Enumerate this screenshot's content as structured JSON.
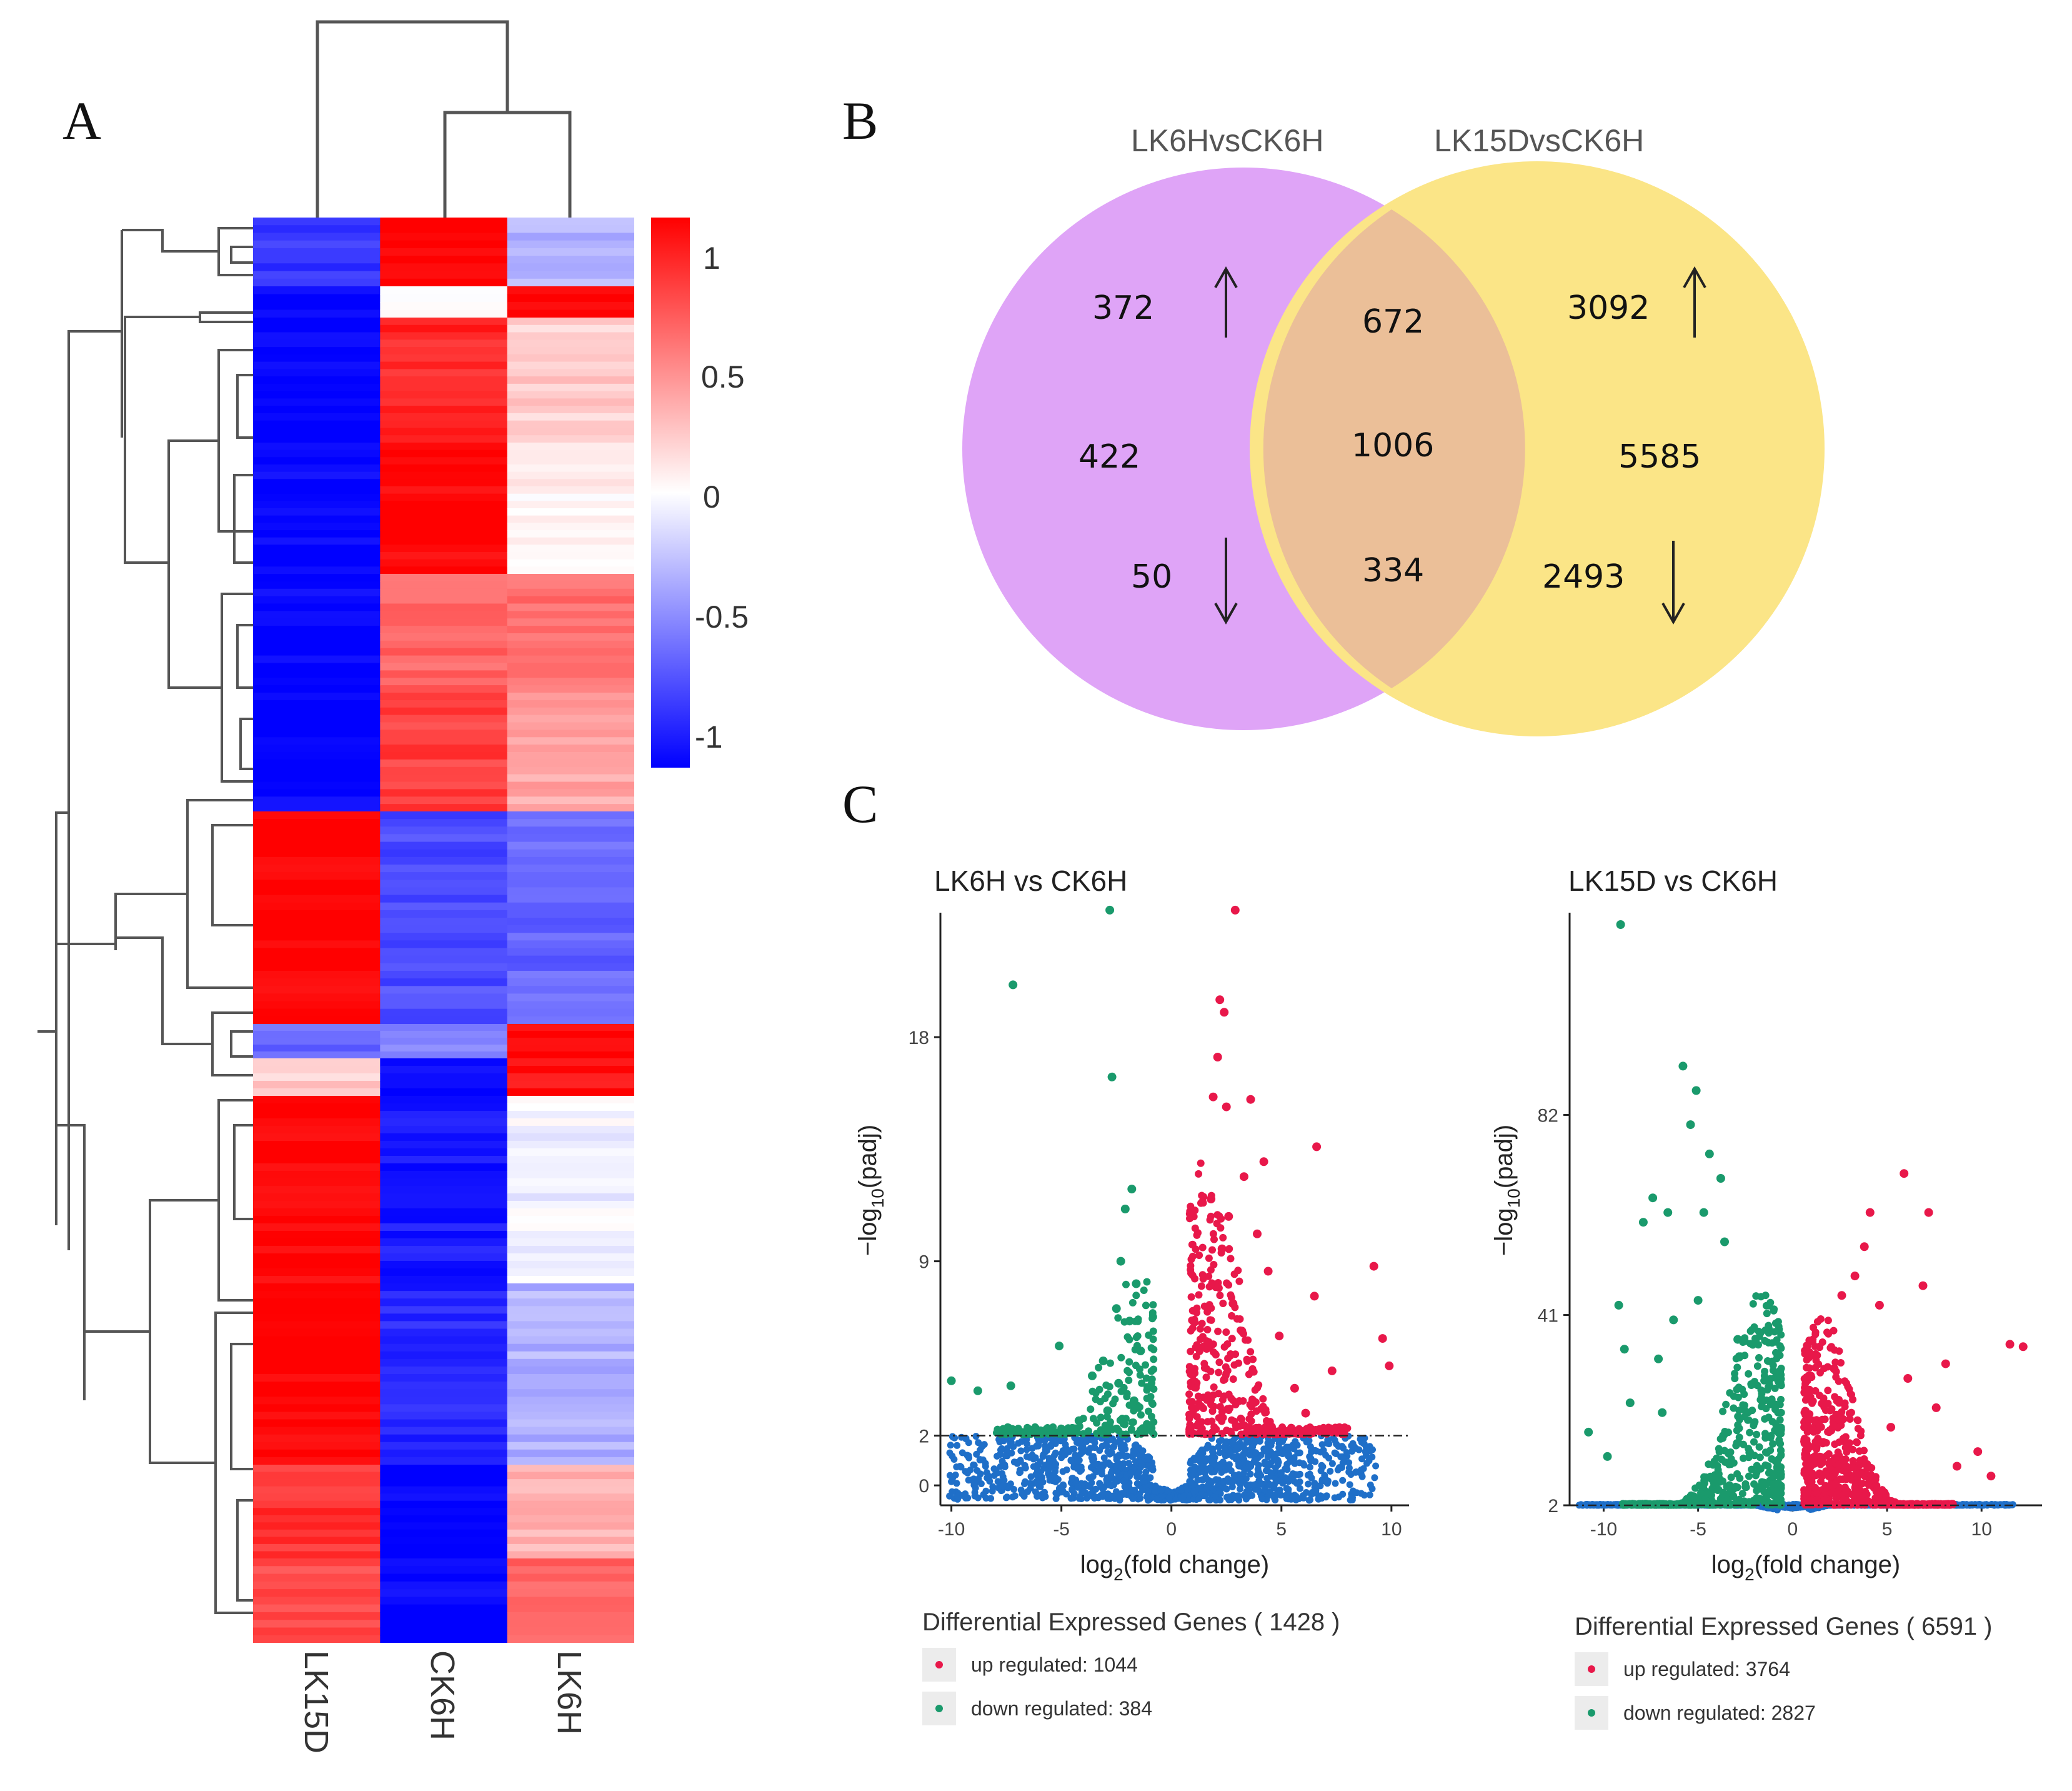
{
  "panels": {
    "a": "A",
    "b": "B",
    "c": "C"
  },
  "colors": {
    "red": "#ff0000",
    "blue": "#0000ff",
    "white": "#ffffff",
    "up": "#e8184a",
    "down": "#1a9a6c",
    "ns": "#1f6fc8",
    "venn_left": "#dfa4f7",
    "venn_right": "#fbe587",
    "venn_overlap": "#ebbf98"
  },
  "chart_data": [
    {
      "type": "heatmap",
      "columns": [
        "LK15D",
        "CK6H",
        "LK6H"
      ],
      "colorbar": {
        "ticks": [
          "1",
          "0.5",
          "0",
          "-0.5",
          "-1"
        ],
        "range": [
          -1,
          1
        ]
      },
      "blocks": [
        {
          "LK15D": -0.8,
          "CK6H": 1.0,
          "LK6H": -0.3
        },
        {
          "LK15D": -1.0,
          "CK6H": 0.05,
          "LK6H": 0.95
        },
        {
          "LK15D": -1.0,
          "CK6H": 0.85,
          "LK6H": 0.2
        },
        {
          "LK15D": -1.0,
          "CK6H": 1.0,
          "LK6H": 0.05
        },
        {
          "LK15D": -1.0,
          "CK6H": 0.6,
          "LK6H": 0.55
        },
        {
          "LK15D": -1.0,
          "CK6H": 0.75,
          "LK6H": 0.35
        },
        {
          "LK15D": 1.0,
          "CK6H": -0.7,
          "LK6H": -0.6
        },
        {
          "LK15D": -0.6,
          "CK6H": -0.5,
          "LK6H": 1.0
        },
        {
          "LK15D": 0.2,
          "CK6H": -1.0,
          "LK6H": 0.95
        },
        {
          "LK15D": 1.0,
          "CK6H": -0.9,
          "LK6H": -0.05
        },
        {
          "LK15D": 1.0,
          "CK6H": -0.85,
          "LK6H": -0.3
        },
        {
          "LK15D": 0.8,
          "CK6H": -1.0,
          "LK6H": 0.3
        },
        {
          "LK15D": 0.7,
          "CK6H": -1.0,
          "LK6H": 0.6
        }
      ]
    },
    {
      "type": "venn",
      "sets": [
        "LK6HvsCK6H",
        "LK15DvsCK6H"
      ],
      "counts": {
        "left_up": "372",
        "left_total": "422",
        "left_down": "50",
        "overlap_up": "672",
        "overlap_total": "1006",
        "overlap_down": "334",
        "right_up": "3092",
        "right_total": "5585",
        "right_down": "2493"
      },
      "arrows": {
        "up": "↑",
        "down": "↓"
      }
    },
    {
      "type": "scatter",
      "title": "LK6H vs CK6H",
      "xlabel_base": "log",
      "xlabel_sub": "2",
      "xlabel_rest": "(fold change)",
      "ylabel_pre": "−log",
      "ylabel_sub": "10",
      "ylabel_rest": "(padj)",
      "xlim": [
        -10.5,
        10.8
      ],
      "ylim": [
        -0.8,
        23.5
      ],
      "xticks": [
        "-10",
        "-5",
        "0",
        "5",
        "10"
      ],
      "yticks": [
        "0",
        "2",
        "9",
        "18"
      ],
      "threshold": 2,
      "points_up": [
        [
          2.9,
          23.1
        ],
        [
          2.2,
          19.5
        ],
        [
          2.4,
          19.0
        ],
        [
          2.1,
          17.2
        ],
        [
          1.9,
          15.6
        ],
        [
          2.5,
          15.2
        ],
        [
          3.6,
          15.5
        ],
        [
          6.6,
          13.6
        ],
        [
          4.2,
          13.0
        ],
        [
          3.3,
          12.4
        ],
        [
          1.8,
          11.5
        ],
        [
          2.6,
          10.8
        ],
        [
          3.9,
          10.1
        ],
        [
          2.3,
          9.5
        ],
        [
          9.2,
          8.8
        ],
        [
          4.4,
          8.6
        ],
        [
          6.5,
          7.6
        ],
        [
          2.8,
          7.3
        ],
        [
          9.6,
          5.9
        ],
        [
          3.2,
          6.2
        ],
        [
          4.9,
          6.0
        ],
        [
          1.6,
          5.5
        ],
        [
          7.3,
          4.6
        ],
        [
          9.9,
          4.8
        ],
        [
          5.6,
          3.9
        ],
        [
          3.7,
          3.4
        ],
        [
          6.1,
          2.9
        ]
      ],
      "points_down": [
        [
          -2.8,
          23.1
        ],
        [
          -7.2,
          20.1
        ],
        [
          -2.7,
          16.4
        ],
        [
          -1.8,
          11.9
        ],
        [
          -2.1,
          11.1
        ],
        [
          -2.3,
          9.0
        ],
        [
          -1.6,
          8.1
        ],
        [
          -2.5,
          7.1
        ],
        [
          -1.9,
          6.6
        ],
        [
          -5.1,
          5.6
        ],
        [
          -3.1,
          5.0
        ],
        [
          -1.4,
          5.4
        ],
        [
          -10.0,
          4.2
        ],
        [
          -2.4,
          4.1
        ],
        [
          -3.6,
          4.4
        ],
        [
          -8.8,
          3.8
        ],
        [
          -1.7,
          3.4
        ],
        [
          -7.3,
          4.0
        ],
        [
          -2.9,
          3.0
        ],
        [
          -4.2,
          2.6
        ]
      ],
      "dense_up": {
        "xmin": 0.8,
        "xmax": 8.0,
        "peak": 12.5,
        "n": 420
      },
      "dense_down": {
        "xmin": -8.0,
        "xmax": -0.8,
        "peak": 8.0,
        "n": 220
      },
      "legend": {
        "title_prefix": "Differential Expressed Genes",
        "total": "( 1428 )",
        "up_label": "up regulated: 1044",
        "down_label": "down regulated: 384"
      }
    },
    {
      "type": "scatter",
      "title": "LK15D vs CK6H",
      "xlabel_base": "log",
      "xlabel_sub": "2",
      "xlabel_rest": "(fold change)",
      "ylabel_pre": "−log",
      "ylabel_sub": "10",
      "ylabel_rest": "(padj)",
      "xlim": [
        -11.8,
        13.2
      ],
      "ylim": [
        2.0,
        126
      ],
      "xticks": [
        "-10",
        "-5",
        "0",
        "5",
        "10"
      ],
      "yticks": [
        "2",
        "41",
        "82"
      ],
      "threshold": 2,
      "points_up": [
        [
          11.5,
          35
        ],
        [
          12.2,
          34.5
        ],
        [
          5.9,
          70
        ],
        [
          7.2,
          62
        ],
        [
          4.1,
          62
        ],
        [
          3.8,
          55
        ],
        [
          2.6,
          45
        ],
        [
          6.9,
          47
        ],
        [
          4.6,
          43
        ],
        [
          8.1,
          31
        ],
        [
          6.1,
          28
        ],
        [
          7.6,
          22
        ],
        [
          9.8,
          13
        ],
        [
          8.7,
          10
        ],
        [
          10.5,
          8
        ],
        [
          5.2,
          18
        ],
        [
          3.3,
          49
        ],
        [
          2.2,
          30
        ]
      ],
      "points_down": [
        [
          -9.1,
          121
        ],
        [
          -5.8,
          92
        ],
        [
          -5.1,
          87
        ],
        [
          -5.4,
          80
        ],
        [
          -4.4,
          74
        ],
        [
          -7.4,
          65
        ],
        [
          -3.8,
          69
        ],
        [
          -6.6,
          62
        ],
        [
          -4.7,
          62
        ],
        [
          -9.2,
          43
        ],
        [
          -7.9,
          60
        ],
        [
          -8.9,
          34
        ],
        [
          -10.8,
          17
        ],
        [
          -8.6,
          23
        ],
        [
          -3.6,
          56
        ],
        [
          -6.3,
          40
        ],
        [
          -5.0,
          44
        ],
        [
          -7.1,
          32
        ],
        [
          -9.8,
          12
        ],
        [
          -2.9,
          36
        ],
        [
          -6.9,
          21
        ]
      ],
      "dense_up": {
        "xmin": 0.6,
        "xmax": 8.5,
        "peak": 40,
        "n": 700
      },
      "dense_down": {
        "xmin": -9.0,
        "xmax": -0.6,
        "peak": 45,
        "n": 650
      },
      "legend": {
        "title_prefix": "Differential Expressed Genes",
        "total": "( 6591 )",
        "up_label": "up regulated: 3764",
        "down_label": "down regulated: 2827"
      }
    }
  ]
}
